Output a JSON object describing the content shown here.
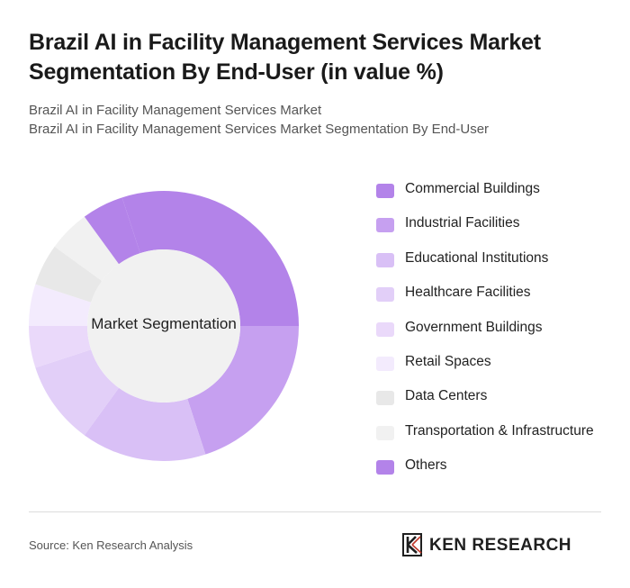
{
  "header": {
    "title": "Brazil AI in Facility Management Services Market Segmentation By End-User (in value %)",
    "subtitle_1": "Brazil AI in Facility Management Services Market",
    "subtitle_2": "Brazil AI in Facility Management Services Market Segmentation By End-User"
  },
  "chart_data": {
    "type": "pie",
    "donut": true,
    "center_label": "Market Segmentation",
    "legend_position": "right",
    "categories": [
      "Commercial Buildings",
      "Industrial Facilities",
      "Educational Institutions",
      "Healthcare Facilities",
      "Government Buildings",
      "Retail Spaces",
      "Data Centers",
      "Transportation & Infrastructure",
      "Others"
    ],
    "values": [
      30,
      20,
      15,
      10,
      5,
      5,
      5,
      5,
      5
    ],
    "colors": [
      "#b383e9",
      "#c6a0f0",
      "#d9c0f6",
      "#e2cff8",
      "#ead9fa",
      "#f3ebfd",
      "#e8e8e8",
      "#f1f1f1",
      "#b383e9"
    ],
    "start_angle_deg": -18
  },
  "footer": {
    "source": "Source: Ken Research Analysis",
    "logo_text": "KEN RESEARCH"
  }
}
